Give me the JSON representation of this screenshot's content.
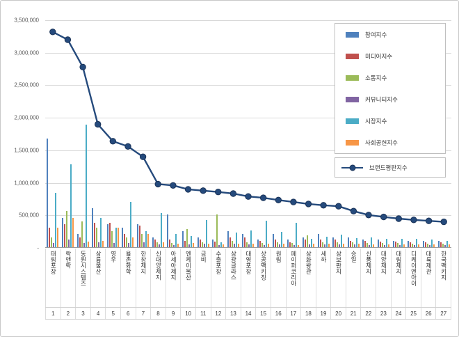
{
  "figure": {
    "background": "#ffffff",
    "border_color": "#c8c8c8"
  },
  "chart_data": {
    "type": "bar",
    "title": "",
    "xlabel": "",
    "ylabel": "",
    "ylim": [
      0,
      3500000
    ],
    "grid": true,
    "legend_position": "top-right",
    "gridline_color": "#d9d9d9",
    "yticks": [
      {
        "value": 3500000,
        "label": "3,500,000"
      },
      {
        "value": 3000000,
        "label": "3,000,000"
      },
      {
        "value": 2500000,
        "label": "2,500,000"
      },
      {
        "value": 2000000,
        "label": "2,000,000"
      },
      {
        "value": 1500000,
        "label": "1,500,000"
      },
      {
        "value": 1000000,
        "label": "1,000,000"
      },
      {
        "value": 500000,
        "label": "500,000"
      },
      {
        "value": 0,
        "label": "-"
      }
    ],
    "categories": [
      "태림포장",
      "락앤락",
      "동원시스템즈",
      "삼륭물산",
      "영우",
      "율촌화학",
      "한창제지",
      "신대양제지",
      "아세아제지",
      "엔케이물산",
      "금비",
      "수출포장",
      "삼광글라스",
      "대영포장",
      "상공팩키징",
      "원림",
      "페이퍼코리아",
      "삼화왕관",
      "세하",
      "삼보판지",
      "승일",
      "신풍제지",
      "대양제지",
      "대림제지",
      "디케이엔아이",
      "대륙제관",
      "한국팩키지"
    ],
    "rank_labels": [
      "1",
      "2",
      "3",
      "4",
      "5",
      "6",
      "7",
      "8",
      "9",
      "10",
      "11",
      "12",
      "13",
      "14",
      "15",
      "16",
      "17",
      "18",
      "19",
      "20",
      "21",
      "22",
      "23",
      "24",
      "25",
      "26",
      "27"
    ],
    "series": [
      {
        "name": "참여지수",
        "color": "#4F81BD",
        "values": [
          1670000,
          450000,
          200000,
          600000,
          350000,
          300000,
          350000,
          150000,
          500000,
          250000,
          150000,
          120000,
          250000,
          200000,
          120000,
          200000,
          120000,
          150000,
          200000,
          150000,
          150000,
          120000,
          120000,
          100000,
          100000,
          100000,
          100000
        ]
      },
      {
        "name": "미디어지수",
        "color": "#C0504D",
        "values": [
          300000,
          350000,
          150000,
          370000,
          380000,
          200000,
          330000,
          120000,
          120000,
          100000,
          120000,
          90000,
          150000,
          150000,
          100000,
          120000,
          80000,
          120000,
          120000,
          120000,
          100000,
          100000,
          90000,
          90000,
          80000,
          80000,
          80000
        ]
      },
      {
        "name": "소통지수",
        "color": "#9BBB59",
        "values": [
          150000,
          560000,
          400000,
          300000,
          250000,
          150000,
          200000,
          80000,
          60000,
          280000,
          80000,
          500000,
          100000,
          80000,
          60000,
          80000,
          60000,
          180000,
          80000,
          80000,
          80000,
          60000,
          60000,
          60000,
          50000,
          50000,
          50000
        ]
      },
      {
        "name": "커뮤니티지수",
        "color": "#8064A2",
        "values": [
          60000,
          120000,
          60000,
          80000,
          60000,
          60000,
          70000,
          40000,
          30000,
          40000,
          50000,
          30000,
          50000,
          40000,
          30000,
          40000,
          30000,
          40000,
          40000,
          40000,
          40000,
          30000,
          30000,
          30000,
          30000,
          30000,
          30000
        ]
      },
      {
        "name": "시장지수",
        "color": "#4BACC6",
        "values": [
          840000,
          1270000,
          1880000,
          450000,
          300000,
          700000,
          250000,
          520000,
          200000,
          170000,
          420000,
          80000,
          230000,
          260000,
          410000,
          240000,
          380000,
          130000,
          160000,
          190000,
          140000,
          150000,
          130000,
          130000,
          130000,
          115000,
          100000
        ]
      },
      {
        "name": "사회공헌지수",
        "color": "#F79646",
        "values": [
          300000,
          450000,
          90000,
          100000,
          300000,
          150000,
          200000,
          70000,
          50000,
          60000,
          50000,
          40000,
          50000,
          50000,
          50000,
          50000,
          30000,
          50000,
          50000,
          50000,
          50000,
          40000,
          40000,
          40000,
          40000,
          40000,
          40000
        ]
      }
    ],
    "line_series": {
      "name": "브랜드평판지수",
      "color": "#254A7C",
      "marker_stroke": "#1B3357",
      "values": [
        3320000,
        3200000,
        2780000,
        1900000,
        1640000,
        1560000,
        1400000,
        980000,
        960000,
        900000,
        880000,
        860000,
        835000,
        790000,
        770000,
        735000,
        705000,
        675000,
        655000,
        640000,
        565000,
        505000,
        475000,
        450000,
        430000,
        415000,
        400000
      ]
    }
  }
}
